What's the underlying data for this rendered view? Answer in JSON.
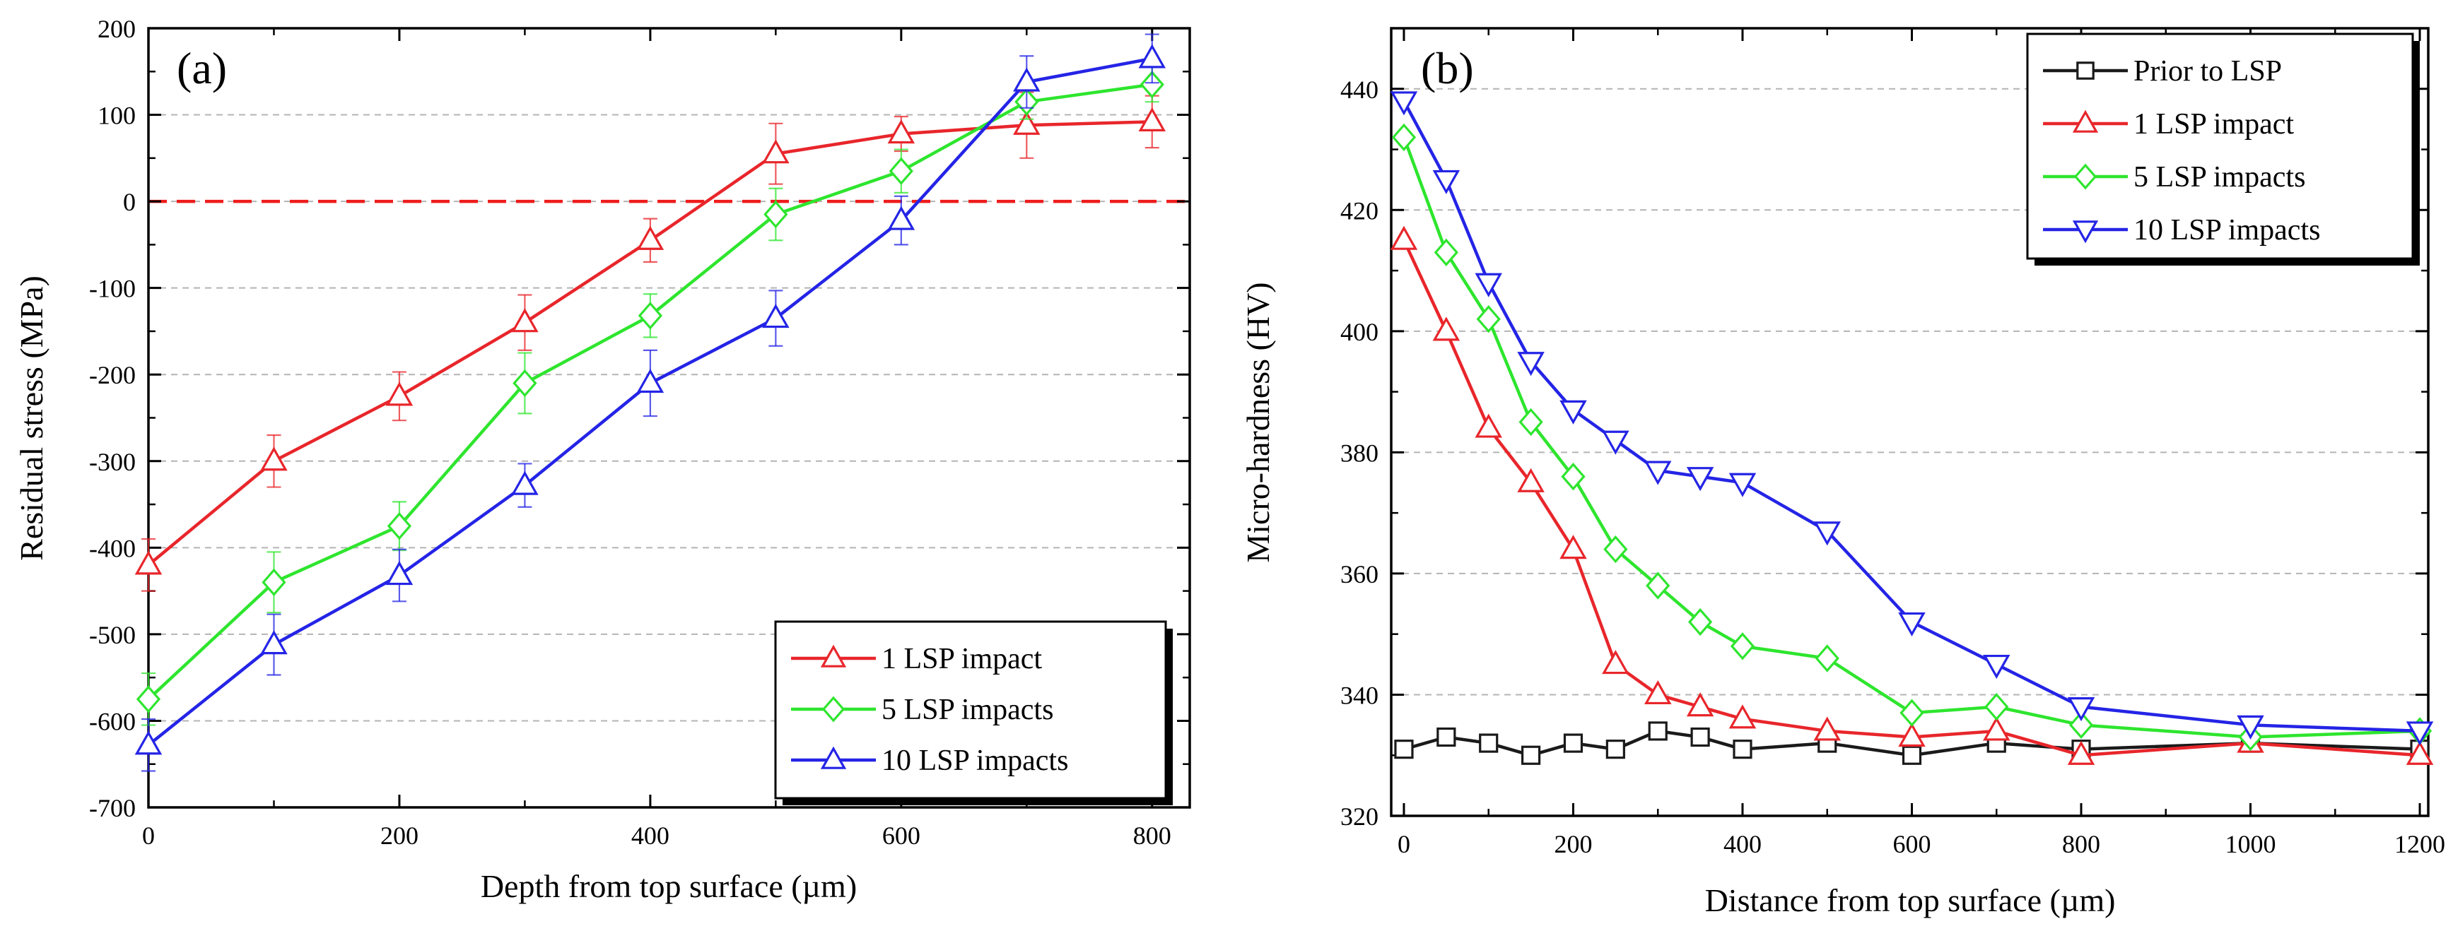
{
  "chart_data": [
    {
      "type": "line",
      "panel_label": "(a)",
      "title": "",
      "xlabel": "Depth from top surface (µm)",
      "ylabel": "Residual stress (MPa)",
      "xlim": [
        0,
        830
      ],
      "ylim": [
        -700,
        200
      ],
      "xticks": [
        0,
        200,
        400,
        600,
        800
      ],
      "yticks": [
        200,
        100,
        0,
        -100,
        -200,
        -300,
        -400,
        -500,
        -600,
        -700
      ],
      "grid": "horizontal dashed",
      "reference_line": {
        "y": 0,
        "color": "#ee1c1c",
        "style": "dashed"
      },
      "legend_position": "bottom-right",
      "series": [
        {
          "name": "1 LSP impact",
          "color": "#e8262b",
          "marker": "triangle-up",
          "x": [
            0,
            100,
            200,
            300,
            400,
            500,
            600,
            700,
            800
          ],
          "values": [
            -420,
            -300,
            -225,
            -140,
            -45,
            55,
            78,
            88,
            92
          ],
          "error": [
            30,
            30,
            28,
            32,
            25,
            35,
            20,
            38,
            30
          ]
        },
        {
          "name": "5 LSP impacts",
          "color": "#2ee52e",
          "marker": "diamond",
          "x": [
            0,
            100,
            200,
            300,
            400,
            500,
            600,
            700,
            800
          ],
          "values": [
            -575,
            -440,
            -375,
            -210,
            -132,
            -15,
            35,
            115,
            135
          ],
          "error": [
            30,
            35,
            28,
            35,
            25,
            30,
            25,
            20,
            20
          ]
        },
        {
          "name": "10 LSP impacts",
          "color": "#2424e6",
          "marker": "triangle-up",
          "x": [
            0,
            100,
            200,
            300,
            400,
            500,
            600,
            700,
            800
          ],
          "values": [
            -628,
            -512,
            -432,
            -328,
            -210,
            -135,
            -22,
            138,
            165
          ],
          "error": [
            30,
            35,
            30,
            25,
            38,
            32,
            28,
            30,
            28
          ]
        }
      ]
    },
    {
      "type": "line",
      "panel_label": "(b)",
      "title": "",
      "xlabel": "Distance from top surface (µm)",
      "ylabel": "Micro-hardness (HV)",
      "xlim": [
        -15,
        1210
      ],
      "ylim": [
        320,
        450
      ],
      "xticks": [
        0,
        200,
        400,
        600,
        800,
        1000,
        1200
      ],
      "yticks": [
        320,
        340,
        360,
        380,
        400,
        420,
        440
      ],
      "grid": "horizontal dashed",
      "legend_position": "top-right",
      "series": [
        {
          "name": "Prior to LSP",
          "color": "#1a1a1a",
          "marker": "square",
          "x": [
            0,
            50,
            100,
            150,
            200,
            250,
            300,
            350,
            400,
            500,
            600,
            700,
            800,
            1000,
            1200
          ],
          "values": [
            331,
            333,
            332,
            330,
            332,
            331,
            334,
            333,
            331,
            332,
            330,
            332,
            331,
            332,
            331
          ]
        },
        {
          "name": "1 LSP impact",
          "color": "#e8262b",
          "marker": "triangle-up",
          "x": [
            0,
            50,
            100,
            150,
            200,
            250,
            300,
            350,
            400,
            500,
            600,
            700,
            800,
            1000,
            1200
          ],
          "values": [
            415,
            400,
            384,
            375,
            364,
            345,
            340,
            338,
            336,
            334,
            333,
            334,
            330,
            332,
            330
          ]
        },
        {
          "name": "5 LSP impacts",
          "color": "#2ee52e",
          "marker": "diamond",
          "x": [
            0,
            50,
            100,
            150,
            200,
            250,
            300,
            350,
            400,
            500,
            600,
            700,
            800,
            1000,
            1200
          ],
          "values": [
            432,
            413,
            402,
            385,
            376,
            364,
            358,
            352,
            348,
            346,
            337,
            338,
            335,
            333,
            334
          ]
        },
        {
          "name": "10 LSP impacts",
          "color": "#2424e6",
          "marker": "triangle-down",
          "x": [
            0,
            50,
            100,
            150,
            200,
            250,
            300,
            350,
            400,
            500,
            600,
            700,
            800,
            1000,
            1200
          ],
          "values": [
            438,
            425,
            408,
            395,
            387,
            382,
            377,
            376,
            375,
            367,
            352,
            345,
            338,
            335,
            334
          ]
        }
      ]
    }
  ]
}
